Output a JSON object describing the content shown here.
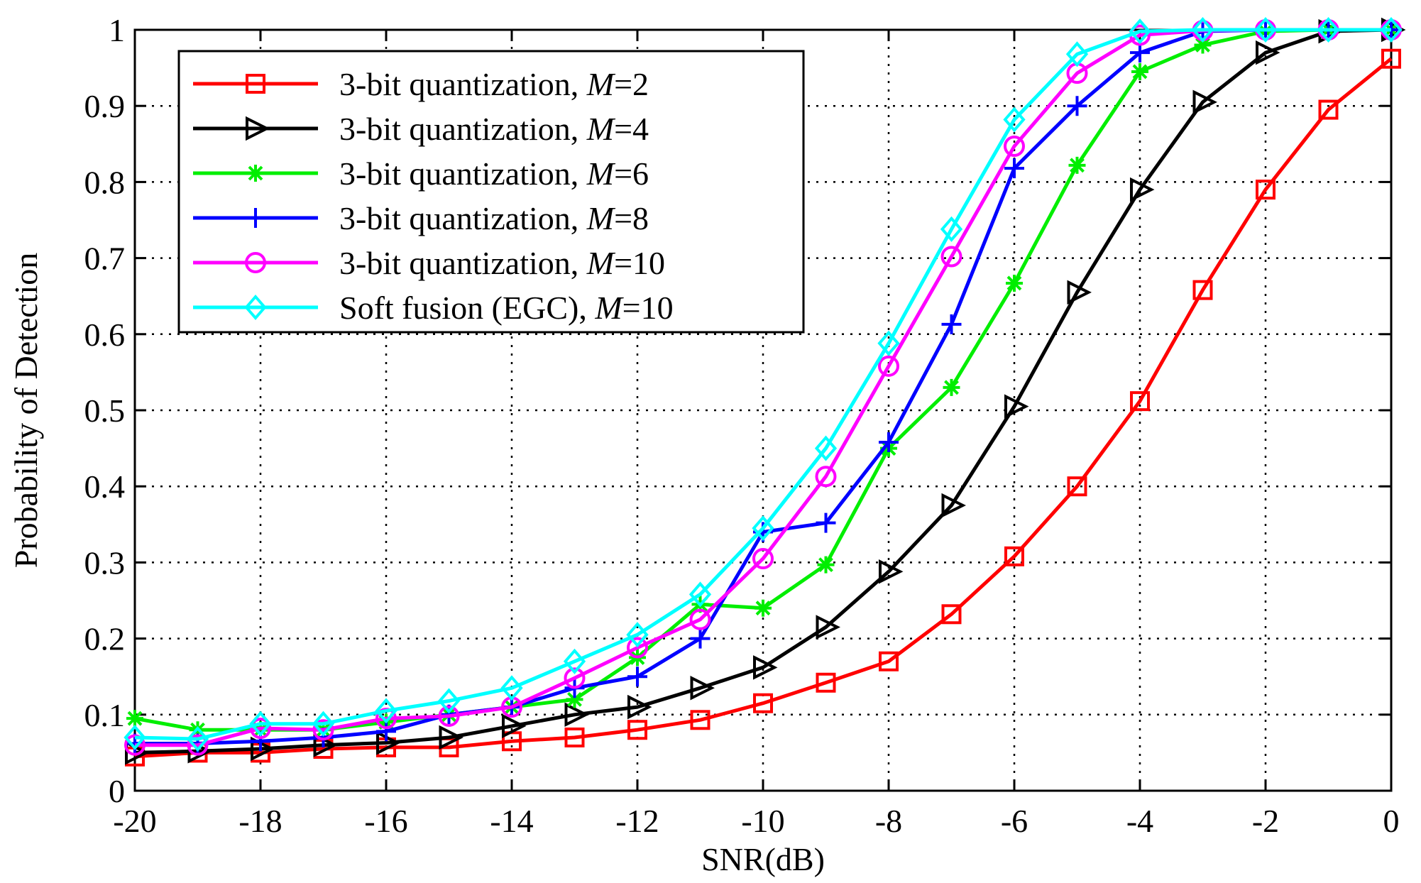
{
  "chart_data": {
    "type": "line",
    "title": "",
    "xlabel": "SNR(dB)",
    "ylabel": "Probability of Detection",
    "xlim": [
      -20,
      0
    ],
    "ylim": [
      0,
      1
    ],
    "grid": true,
    "legend_position": "top-left",
    "xticks": [
      -20,
      -18,
      -16,
      -14,
      -12,
      -10,
      -8,
      -6,
      -4,
      -2,
      0
    ],
    "xtick_labels": [
      "-20",
      "-18",
      "-16",
      "-14",
      "-12",
      "-10",
      "-8",
      "-6",
      "-4",
      "-2",
      "0"
    ],
    "yticks": [
      0,
      0.1,
      0.2,
      0.3,
      0.4,
      0.5,
      0.6,
      0.7,
      0.8,
      0.9,
      1
    ],
    "ytick_labels": [
      "0",
      "0.1",
      "0.2",
      "0.3",
      "0.4",
      "0.5",
      "0.6",
      "0.7",
      "0.8",
      "0.9",
      "1"
    ],
    "x": [
      -20,
      -19,
      -18,
      -17,
      -16,
      -15,
      -14,
      -13,
      -12,
      -11,
      -10,
      -9,
      -8,
      -7,
      -6,
      -5,
      -4,
      -3,
      -2,
      -1,
      0
    ],
    "series": [
      {
        "name_prefix": "3-bit quantization, ",
        "name_var": "M",
        "name_suffix": "=2",
        "color": "#ff0000",
        "marker": "square",
        "values": [
          0.045,
          0.05,
          0.05,
          0.055,
          0.057,
          0.057,
          0.065,
          0.07,
          0.08,
          0.093,
          0.115,
          0.142,
          0.17,
          0.232,
          0.308,
          0.4,
          0.512,
          0.658,
          0.79,
          0.895,
          0.962
        ]
      },
      {
        "name_prefix": "3-bit quantization, ",
        "name_var": "M",
        "name_suffix": "=4",
        "color": "#000000",
        "marker": "triangle-right",
        "values": [
          0.05,
          0.052,
          0.055,
          0.06,
          0.063,
          0.07,
          0.085,
          0.1,
          0.11,
          0.135,
          0.162,
          0.215,
          0.288,
          0.375,
          0.505,
          0.655,
          0.79,
          0.905,
          0.97,
          0.998,
          1.0
        ]
      },
      {
        "name_prefix": "3-bit quantization, ",
        "name_var": "M",
        "name_suffix": "=6",
        "color": "#00ee00",
        "marker": "star",
        "values": [
          0.095,
          0.08,
          0.08,
          0.08,
          0.09,
          0.1,
          0.11,
          0.12,
          0.175,
          0.245,
          0.24,
          0.297,
          0.45,
          0.53,
          0.667,
          0.822,
          0.945,
          0.98,
          0.998,
          1.0,
          1.0
        ]
      },
      {
        "name_prefix": "3-bit quantization, ",
        "name_var": "M",
        "name_suffix": "=8",
        "color": "#0000ff",
        "marker": "plus",
        "values": [
          0.062,
          0.062,
          0.065,
          0.07,
          0.078,
          0.1,
          0.11,
          0.135,
          0.15,
          0.2,
          0.34,
          0.352,
          0.458,
          0.613,
          0.818,
          0.9,
          0.97,
          0.998,
          1.0,
          1.0,
          1.0
        ]
      },
      {
        "name_prefix": "3-bit quantization, ",
        "name_var": "M",
        "name_suffix": "=10",
        "color": "#ff00ff",
        "marker": "circle",
        "values": [
          0.06,
          0.06,
          0.082,
          0.08,
          0.095,
          0.098,
          0.11,
          0.148,
          0.188,
          0.225,
          0.305,
          0.413,
          0.558,
          0.702,
          0.847,
          0.943,
          0.993,
          0.999,
          1.0,
          1.0,
          1.0
        ]
      },
      {
        "name_prefix": "Soft fusion (EGC), ",
        "name_var": "M",
        "name_suffix": "=10",
        "color": "#00ffff",
        "marker": "diamond",
        "values": [
          0.07,
          0.068,
          0.088,
          0.088,
          0.105,
          0.118,
          0.135,
          0.17,
          0.205,
          0.258,
          0.345,
          0.45,
          0.588,
          0.738,
          0.882,
          0.968,
          0.998,
          1.0,
          1.0,
          1.0,
          1.0
        ]
      }
    ]
  }
}
